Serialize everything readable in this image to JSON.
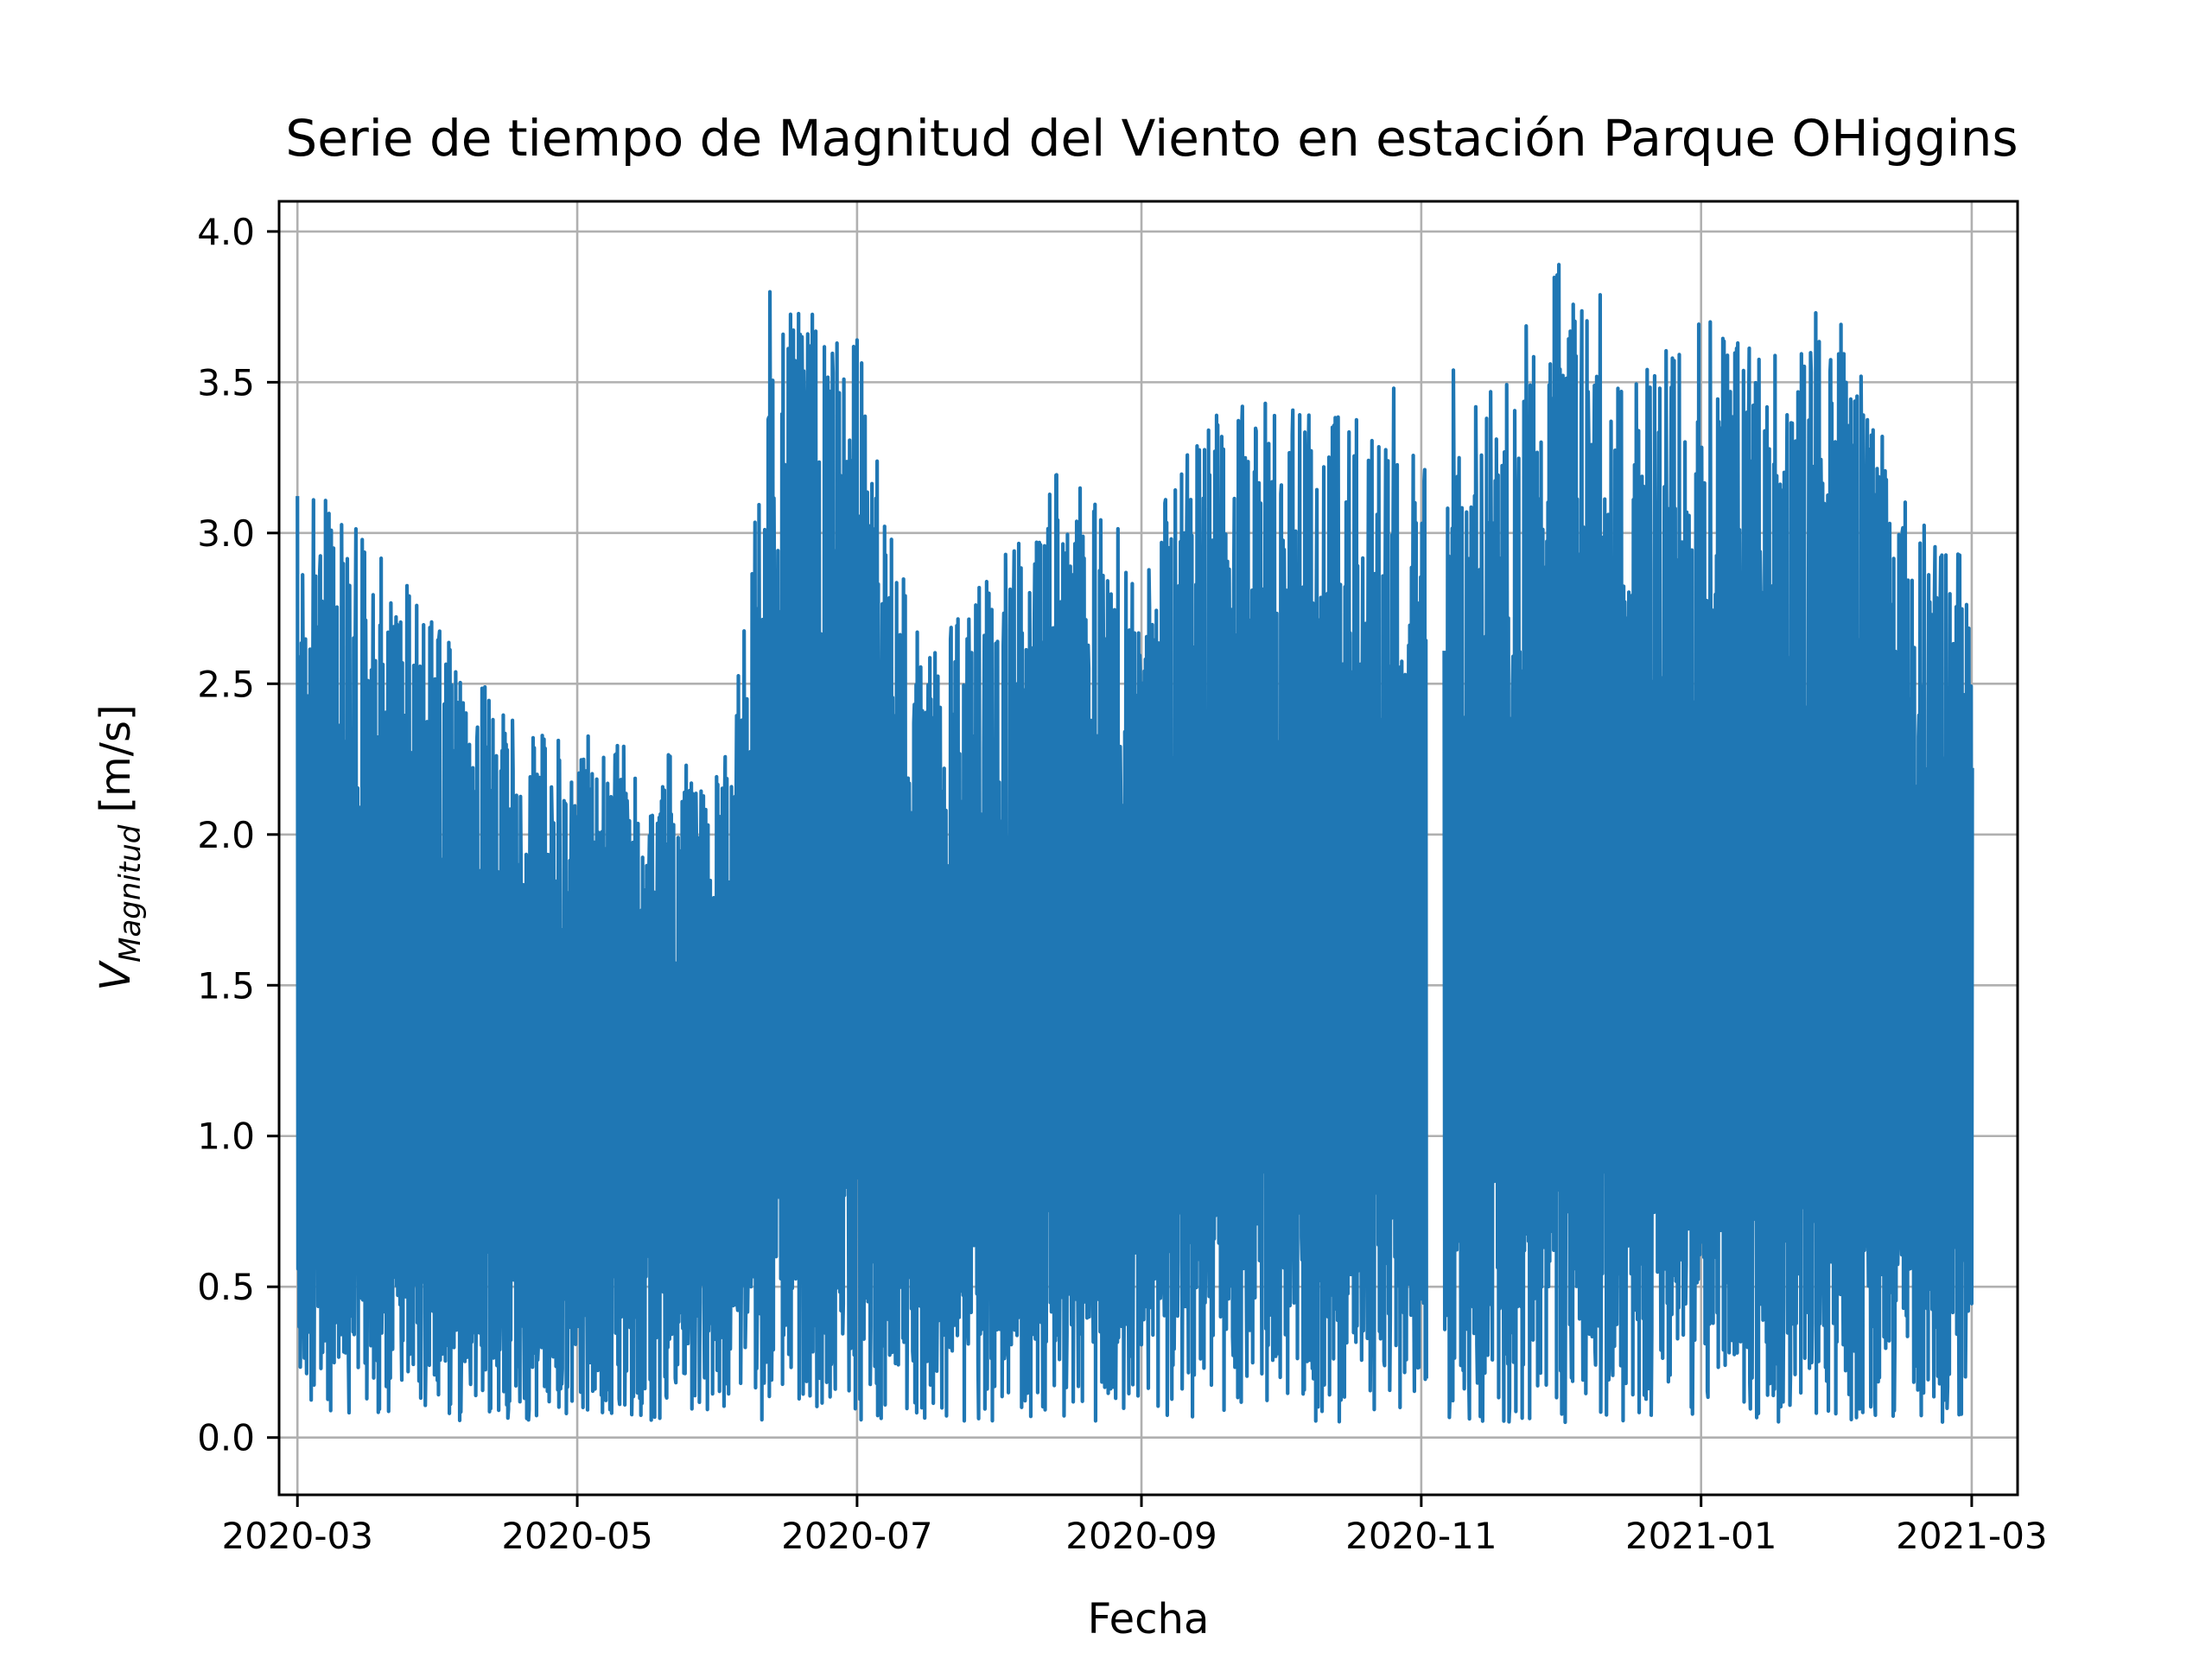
{
  "chart_data": {
    "type": "line",
    "title": "Serie de tiempo de Magnitud del Viento en estación Parque OHiggins",
    "xlabel": "Fecha",
    "ylabel": {
      "symbol": "V",
      "subscript": "Magnitud",
      "unit": "[m/s]"
    },
    "xlim": [
      "2020-02-26",
      "2021-03-11"
    ],
    "ylim": [
      -0.19,
      4.1
    ],
    "x_ticks": [
      "2020-03-01",
      "2020-05-01",
      "2020-07-01",
      "2020-09-01",
      "2020-11-01",
      "2021-01-01",
      "2021-03-01"
    ],
    "x_tick_labels": [
      "2020-03",
      "2020-05",
      "2020-07",
      "2020-09",
      "2020-11",
      "2021-01",
      "2021-03"
    ],
    "y_ticks": [
      0.0,
      0.5,
      1.0,
      1.5,
      2.0,
      2.5,
      3.0,
      3.5,
      4.0
    ],
    "y_tick_labels": [
      "0.0",
      "0.5",
      "1.0",
      "1.5",
      "2.0",
      "2.5",
      "3.0",
      "3.5",
      "4.0"
    ],
    "grid": true,
    "colors": {
      "series": "#1f77b4",
      "grid": "#b0b0b0",
      "axes": "#000000"
    },
    "series": [
      {
        "x": [
          "2020-03-01",
          "2020-03-15",
          "2020-04-01",
          "2020-04-15",
          "2020-05-01",
          "2020-05-15",
          "2020-06-01",
          "2020-06-15",
          "2020-07-01",
          "2020-07-15",
          "2020-08-01",
          "2020-08-15",
          "2020-09-01",
          "2020-09-15",
          "2020-10-01",
          "2020-10-15",
          "2020-11-01",
          "2020-11-15",
          "2020-12-01",
          "2020-12-15",
          "2021-01-01",
          "2021-01-15",
          "2021-02-01",
          "2021-02-15",
          "2021-03-01"
        ],
        "y_max": [
          3.2,
          3.0,
          2.7,
          2.4,
          2.35,
          2.3,
          2.2,
          3.8,
          3.65,
          2.6,
          2.9,
          3.25,
          2.95,
          3.4,
          3.4,
          3.45,
          3.25,
          3.5,
          3.9,
          3.5,
          3.7,
          3.6,
          3.7,
          3.1,
          2.9
        ],
        "y_min": [
          0.05,
          0.05,
          0.05,
          0.05,
          0.05,
          0.05,
          0.05,
          0.05,
          0.05,
          0.05,
          0.05,
          0.05,
          0.05,
          0.05,
          0.05,
          0.05,
          0.05,
          0.05,
          0.05,
          0.05,
          0.05,
          0.05,
          0.05,
          0.05,
          0.05
        ],
        "peaks": [
          {
            "x": "2020-06-12",
            "y": 3.8
          },
          {
            "x": "2020-06-19",
            "y": 3.65
          },
          {
            "x": "2020-06-25",
            "y": 3.47
          },
          {
            "x": "2020-07-01",
            "y": 3.64
          },
          {
            "x": "2020-09-23",
            "y": 3.42
          },
          {
            "x": "2020-09-28",
            "y": 3.43
          },
          {
            "x": "2020-10-26",
            "y": 3.48
          },
          {
            "x": "2020-11-08",
            "y": 3.54
          },
          {
            "x": "2020-12-01",
            "y": 3.89
          },
          {
            "x": "2020-12-10",
            "y": 3.79
          },
          {
            "x": "2020-12-23",
            "y": 3.48
          },
          {
            "x": "2021-01-03",
            "y": 3.7
          },
          {
            "x": "2021-01-09",
            "y": 3.63
          },
          {
            "x": "2021-01-26",
            "y": 3.73
          }
        ],
        "gap": [
          "2020-11-02",
          "2020-11-06"
        ]
      }
    ]
  }
}
